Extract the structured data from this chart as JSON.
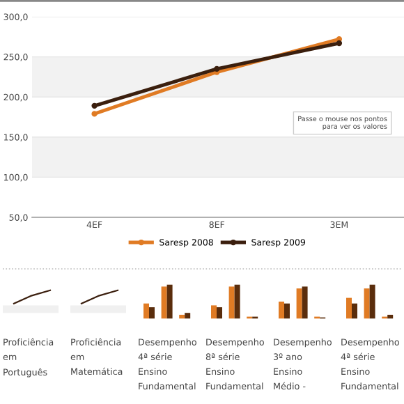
{
  "chart_data": {
    "type": "line",
    "categories": [
      "4EF",
      "8EF",
      "3EM"
    ],
    "series": [
      {
        "name": "Saresp 2008",
        "color": "#e07b24",
        "values": [
          179,
          231,
          272
        ]
      },
      {
        "name": "Saresp 2009",
        "color": "#3b1f0e",
        "values": [
          189,
          235,
          267
        ]
      }
    ],
    "ylim": [
      50,
      300
    ],
    "yticks": [
      {
        "value": 50,
        "label": "50,0"
      },
      {
        "value": 100,
        "label": "100,0"
      },
      {
        "value": 150,
        "label": "150,0"
      },
      {
        "value": 200,
        "label": "200,0"
      },
      {
        "value": 250,
        "label": "250,0"
      },
      {
        "value": 300,
        "label": "300,0"
      }
    ],
    "bands": [
      {
        "axis": "y",
        "from": 100,
        "to": 150,
        "color": "#f2f2f2"
      },
      {
        "axis": "y",
        "from": 200,
        "to": 250,
        "color": "#f2f2f2"
      }
    ],
    "grid": "y",
    "legend": "bottom",
    "marker": "circle",
    "line_style": "solid",
    "annotations": [
      "Passe o mouse nos pontos\npara ver os valores",
      "Proficiência\nem\nPortuguês",
      "Proficiência\nem\nMatemática",
      "Desempenho\n4ª série\nEnsino\nFundamental",
      "Desempenho\n8ª série\nEnsino\nFundamental",
      "Desempenho\n3º ano\nEnsino\nMédio -",
      "Desempenho\n4ª série\nEnsino\nFundamental"
    ]
  }
}
